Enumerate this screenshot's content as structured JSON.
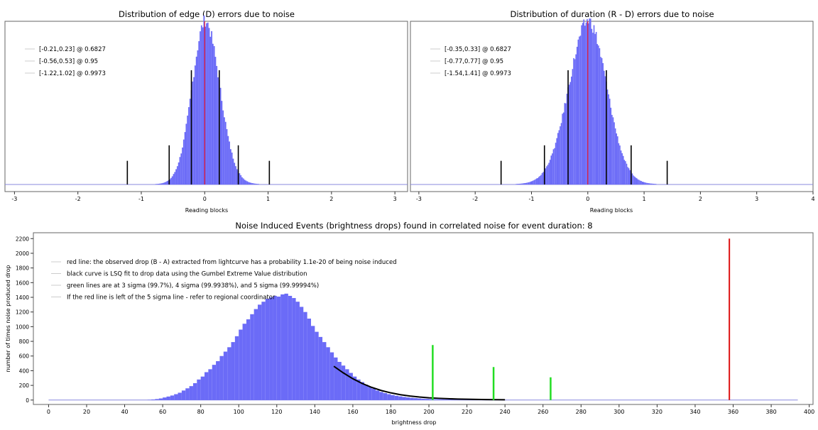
{
  "chart_data": [
    {
      "type": "histogram",
      "title": "Distribution of edge (D) errors due to noise",
      "xlabel": "Reading blocks",
      "ylabel": "",
      "xlim": [
        -3.15,
        3.2
      ],
      "ylim": [
        0,
        1
      ],
      "x_ticks": [
        -3,
        -2,
        -1,
        0,
        1,
        2,
        3
      ],
      "grid": false,
      "legend_position": "top-left",
      "legend": [
        "[-0.21,0.23] @ 0.6827",
        "[-0.56,0.53] @ 0.95",
        "[-1.22,1.02] @ 0.9973"
      ],
      "histogram": {
        "center": 0.0,
        "sigma_left": 0.21,
        "sigma_right": 0.23,
        "peak": 0.97,
        "color": "#6b6bf7"
      },
      "zero_line": {
        "x": 0,
        "color": "#ff0000"
      },
      "interval_markers": [
        {
          "x": -1.22,
          "height": 0.145
        },
        {
          "x": -0.56,
          "height": 0.24
        },
        {
          "x": -0.21,
          "height": 0.7
        },
        {
          "x": 0.23,
          "height": 0.7
        },
        {
          "x": 0.53,
          "height": 0.24
        },
        {
          "x": 1.02,
          "height": 0.145
        }
      ]
    },
    {
      "type": "histogram",
      "title": "Distribution of duration (R - D) errors due to noise",
      "xlabel": "Reading blocks",
      "ylabel": "",
      "xlim": [
        -3.15,
        4.0
      ],
      "ylim": [
        0,
        1
      ],
      "x_ticks": [
        -3,
        -2,
        -1,
        0,
        1,
        2,
        3,
        4
      ],
      "grid": false,
      "legend_position": "top-left",
      "legend": [
        "[-0.35,0.33] @ 0.6827",
        "[-0.77,0.77] @ 0.95",
        "[-1.54,1.41] @ 0.9973"
      ],
      "histogram": {
        "center": 0.0,
        "sigma_left": 0.35,
        "sigma_right": 0.33,
        "peak": 0.97,
        "color": "#6b6bf7"
      },
      "zero_line": {
        "x": 0,
        "color": "#ff0000"
      },
      "interval_markers": [
        {
          "x": -1.54,
          "height": 0.145
        },
        {
          "x": -0.77,
          "height": 0.24
        },
        {
          "x": -0.35,
          "height": 0.7
        },
        {
          "x": 0.33,
          "height": 0.7
        },
        {
          "x": 0.77,
          "height": 0.24
        },
        {
          "x": 1.41,
          "height": 0.145
        }
      ]
    },
    {
      "type": "histogram",
      "title": "Noise Induced Events (brightness drops) found in correlated noise for event duration: 8",
      "xlabel": "brightness drop",
      "ylabel": "number of times noise produced drop",
      "xlim": [
        -8,
        402
      ],
      "ylim": [
        -60,
        2280
      ],
      "x_ticks": [
        0,
        20,
        40,
        60,
        80,
        100,
        120,
        140,
        160,
        180,
        200,
        220,
        240,
        260,
        280,
        300,
        320,
        340,
        360,
        380,
        400
      ],
      "y_ticks": [
        0,
        200,
        400,
        600,
        800,
        1000,
        1200,
        1400,
        1600,
        1800,
        2000,
        2200
      ],
      "grid": false,
      "legend_position": "top-left",
      "legend": [
        "red line: the observed drop (B - A) extracted from lightcurve has a probability 1.1e-20 of being noise induced",
        "black curve is LSQ fit to drop data using the Gumbel Extreme Value distribution",
        "green lines are at 3 sigma (99.7%), 4 sigma (99.9938%), and 5 sigma (99.99994%)",
        "If the red line is left of the 5 sigma line - refer to regional coordinator"
      ],
      "bars_color": "#6b6bf7",
      "bars": [
        {
          "x": 52,
          "y": 4
        },
        {
          "x": 54,
          "y": 8
        },
        {
          "x": 56,
          "y": 14
        },
        {
          "x": 58,
          "y": 22
        },
        {
          "x": 60,
          "y": 35
        },
        {
          "x": 62,
          "y": 48
        },
        {
          "x": 64,
          "y": 62
        },
        {
          "x": 66,
          "y": 80
        },
        {
          "x": 68,
          "y": 100
        },
        {
          "x": 70,
          "y": 130
        },
        {
          "x": 72,
          "y": 160
        },
        {
          "x": 74,
          "y": 190
        },
        {
          "x": 76,
          "y": 230
        },
        {
          "x": 78,
          "y": 280
        },
        {
          "x": 80,
          "y": 320
        },
        {
          "x": 82,
          "y": 380
        },
        {
          "x": 84,
          "y": 420
        },
        {
          "x": 86,
          "y": 480
        },
        {
          "x": 88,
          "y": 530
        },
        {
          "x": 90,
          "y": 600
        },
        {
          "x": 92,
          "y": 660
        },
        {
          "x": 94,
          "y": 720
        },
        {
          "x": 96,
          "y": 790
        },
        {
          "x": 98,
          "y": 870
        },
        {
          "x": 100,
          "y": 960
        },
        {
          "x": 102,
          "y": 1040
        },
        {
          "x": 104,
          "y": 1100
        },
        {
          "x": 106,
          "y": 1170
        },
        {
          "x": 108,
          "y": 1240
        },
        {
          "x": 110,
          "y": 1300
        },
        {
          "x": 112,
          "y": 1340
        },
        {
          "x": 114,
          "y": 1380
        },
        {
          "x": 116,
          "y": 1400
        },
        {
          "x": 118,
          "y": 1420
        },
        {
          "x": 120,
          "y": 1410
        },
        {
          "x": 122,
          "y": 1440
        },
        {
          "x": 124,
          "y": 1450
        },
        {
          "x": 126,
          "y": 1420
        },
        {
          "x": 128,
          "y": 1390
        },
        {
          "x": 130,
          "y": 1340
        },
        {
          "x": 132,
          "y": 1270
        },
        {
          "x": 134,
          "y": 1200
        },
        {
          "x": 136,
          "y": 1110
        },
        {
          "x": 138,
          "y": 1010
        },
        {
          "x": 140,
          "y": 930
        },
        {
          "x": 142,
          "y": 860
        },
        {
          "x": 144,
          "y": 790
        },
        {
          "x": 146,
          "y": 720
        },
        {
          "x": 148,
          "y": 650
        },
        {
          "x": 150,
          "y": 580
        },
        {
          "x": 152,
          "y": 520
        },
        {
          "x": 154,
          "y": 470
        },
        {
          "x": 156,
          "y": 420
        },
        {
          "x": 158,
          "y": 370
        },
        {
          "x": 160,
          "y": 320
        },
        {
          "x": 162,
          "y": 280
        },
        {
          "x": 164,
          "y": 245
        },
        {
          "x": 166,
          "y": 210
        },
        {
          "x": 168,
          "y": 180
        },
        {
          "x": 170,
          "y": 155
        },
        {
          "x": 172,
          "y": 130
        },
        {
          "x": 174,
          "y": 110
        },
        {
          "x": 176,
          "y": 95
        },
        {
          "x": 178,
          "y": 80
        },
        {
          "x": 180,
          "y": 68
        },
        {
          "x": 182,
          "y": 58
        },
        {
          "x": 184,
          "y": 50
        },
        {
          "x": 186,
          "y": 42
        },
        {
          "x": 188,
          "y": 36
        },
        {
          "x": 190,
          "y": 30
        },
        {
          "x": 192,
          "y": 26
        },
        {
          "x": 194,
          "y": 22
        },
        {
          "x": 196,
          "y": 18
        },
        {
          "x": 198,
          "y": 16
        },
        {
          "x": 200,
          "y": 14
        },
        {
          "x": 202,
          "y": 12
        },
        {
          "x": 204,
          "y": 11
        },
        {
          "x": 206,
          "y": 10
        },
        {
          "x": 208,
          "y": 9
        },
        {
          "x": 210,
          "y": 8
        },
        {
          "x": 212,
          "y": 7
        },
        {
          "x": 214,
          "y": 6
        },
        {
          "x": 216,
          "y": 6
        },
        {
          "x": 218,
          "y": 5
        },
        {
          "x": 220,
          "y": 5
        },
        {
          "x": 222,
          "y": 4
        },
        {
          "x": 224,
          "y": 4
        },
        {
          "x": 226,
          "y": 3
        },
        {
          "x": 228,
          "y": 3
        },
        {
          "x": 230,
          "y": 3
        },
        {
          "x": 232,
          "y": 2
        },
        {
          "x": 234,
          "y": 2
        },
        {
          "x": 236,
          "y": 2
        },
        {
          "x": 238,
          "y": 2
        }
      ],
      "baseline": {
        "x_start": 0,
        "x_end": 394,
        "color": "#8888dd"
      },
      "fit_curve": {
        "color": "#000000",
        "x": [
          150,
          155,
          160,
          165,
          170,
          175,
          180,
          185,
          190,
          195,
          200,
          205,
          210,
          215,
          220,
          225,
          230,
          235,
          240
        ],
        "y": [
          460,
          370,
          290,
          225,
          172,
          130,
          98,
          73,
          55,
          41,
          31,
          24,
          18,
          14,
          11,
          9,
          7,
          5,
          4
        ]
      },
      "sigma_lines": [
        {
          "x": 202,
          "y": 750,
          "color": "#22dd22"
        },
        {
          "x": 234,
          "y": 450,
          "color": "#22dd22"
        },
        {
          "x": 264,
          "y": 310,
          "color": "#22dd22"
        }
      ],
      "observed_line": {
        "x": 358,
        "y": 2200,
        "color": "#dd1111"
      }
    }
  ]
}
